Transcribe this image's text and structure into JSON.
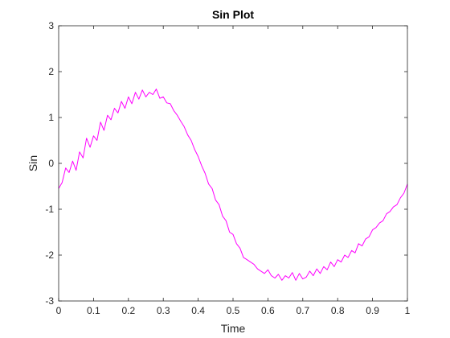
{
  "chart_data": {
    "type": "line",
    "title": "Sin Plot",
    "xlabel": "Time",
    "ylabel": "Sin",
    "xlim": [
      0,
      1
    ],
    "ylim": [
      -3,
      3
    ],
    "x_ticks": [
      0,
      0.1,
      0.2,
      0.3,
      0.4,
      0.5,
      0.6,
      0.7,
      0.8,
      0.9,
      1
    ],
    "x_tick_labels": [
      "0",
      "0.1",
      "0.2",
      "0.3",
      "0.4",
      "0.5",
      "0.6",
      "0.7",
      "0.8",
      "0.9",
      "1"
    ],
    "y_ticks": [
      3,
      2,
      1,
      0,
      -1,
      -2,
      -3
    ],
    "y_tick_labels": [
      "3",
      "2",
      "1",
      "0",
      "-1",
      "-2",
      "-3"
    ],
    "grid": false,
    "legend": "none",
    "series": [
      {
        "color": "#ff00ff",
        "x": [
          0,
          0.01,
          0.02,
          0.03,
          0.04,
          0.05,
          0.06,
          0.07,
          0.08,
          0.09,
          0.1,
          0.11,
          0.12,
          0.13,
          0.14,
          0.15,
          0.16,
          0.17,
          0.18,
          0.19,
          0.2,
          0.21,
          0.22,
          0.23,
          0.24,
          0.25,
          0.26,
          0.27,
          0.28,
          0.29,
          0.3,
          0.31,
          0.32,
          0.33,
          0.34,
          0.35,
          0.36,
          0.37,
          0.38,
          0.39,
          0.4,
          0.41,
          0.42,
          0.43,
          0.44,
          0.45,
          0.46,
          0.47,
          0.48,
          0.49,
          0.5,
          0.51,
          0.52,
          0.53,
          0.54,
          0.55,
          0.56,
          0.57,
          0.58,
          0.59,
          0.6,
          0.61,
          0.62,
          0.63,
          0.64,
          0.65,
          0.66,
          0.67,
          0.68,
          0.69,
          0.7,
          0.71,
          0.72,
          0.73,
          0.74,
          0.75,
          0.76,
          0.77,
          0.78,
          0.79,
          0.8,
          0.81,
          0.82,
          0.83,
          0.84,
          0.85,
          0.86,
          0.87,
          0.88,
          0.89,
          0.9,
          0.91,
          0.92,
          0.93,
          0.94,
          0.95,
          0.96,
          0.97,
          0.98,
          0.99,
          1
        ],
        "y": [
          -0.55,
          -0.42,
          -0.1,
          -0.2,
          0.05,
          -0.15,
          0.25,
          0.12,
          0.55,
          0.35,
          0.6,
          0.5,
          0.9,
          0.72,
          1.05,
          0.95,
          1.2,
          1.1,
          1.35,
          1.2,
          1.45,
          1.3,
          1.55,
          1.4,
          1.6,
          1.45,
          1.55,
          1.5,
          1.62,
          1.42,
          1.45,
          1.32,
          1.3,
          1.15,
          1.05,
          0.92,
          0.8,
          0.62,
          0.5,
          0.3,
          0.15,
          -0.05,
          -0.22,
          -0.45,
          -0.55,
          -0.8,
          -0.9,
          -1.15,
          -1.25,
          -1.5,
          -1.55,
          -1.75,
          -1.85,
          -2.05,
          -2.1,
          -2.15,
          -2.2,
          -2.3,
          -2.35,
          -2.4,
          -2.32,
          -2.45,
          -2.5,
          -2.42,
          -2.55,
          -2.45,
          -2.5,
          -2.38,
          -2.55,
          -2.4,
          -2.52,
          -2.48,
          -2.35,
          -2.45,
          -2.3,
          -2.4,
          -2.25,
          -2.32,
          -2.15,
          -2.25,
          -2.1,
          -2.15,
          -2.0,
          -2.05,
          -1.9,
          -1.95,
          -1.75,
          -1.8,
          -1.65,
          -1.6,
          -1.45,
          -1.4,
          -1.3,
          -1.25,
          -1.1,
          -1.05,
          -0.95,
          -0.9,
          -0.75,
          -0.65,
          -0.45
        ]
      }
    ]
  }
}
